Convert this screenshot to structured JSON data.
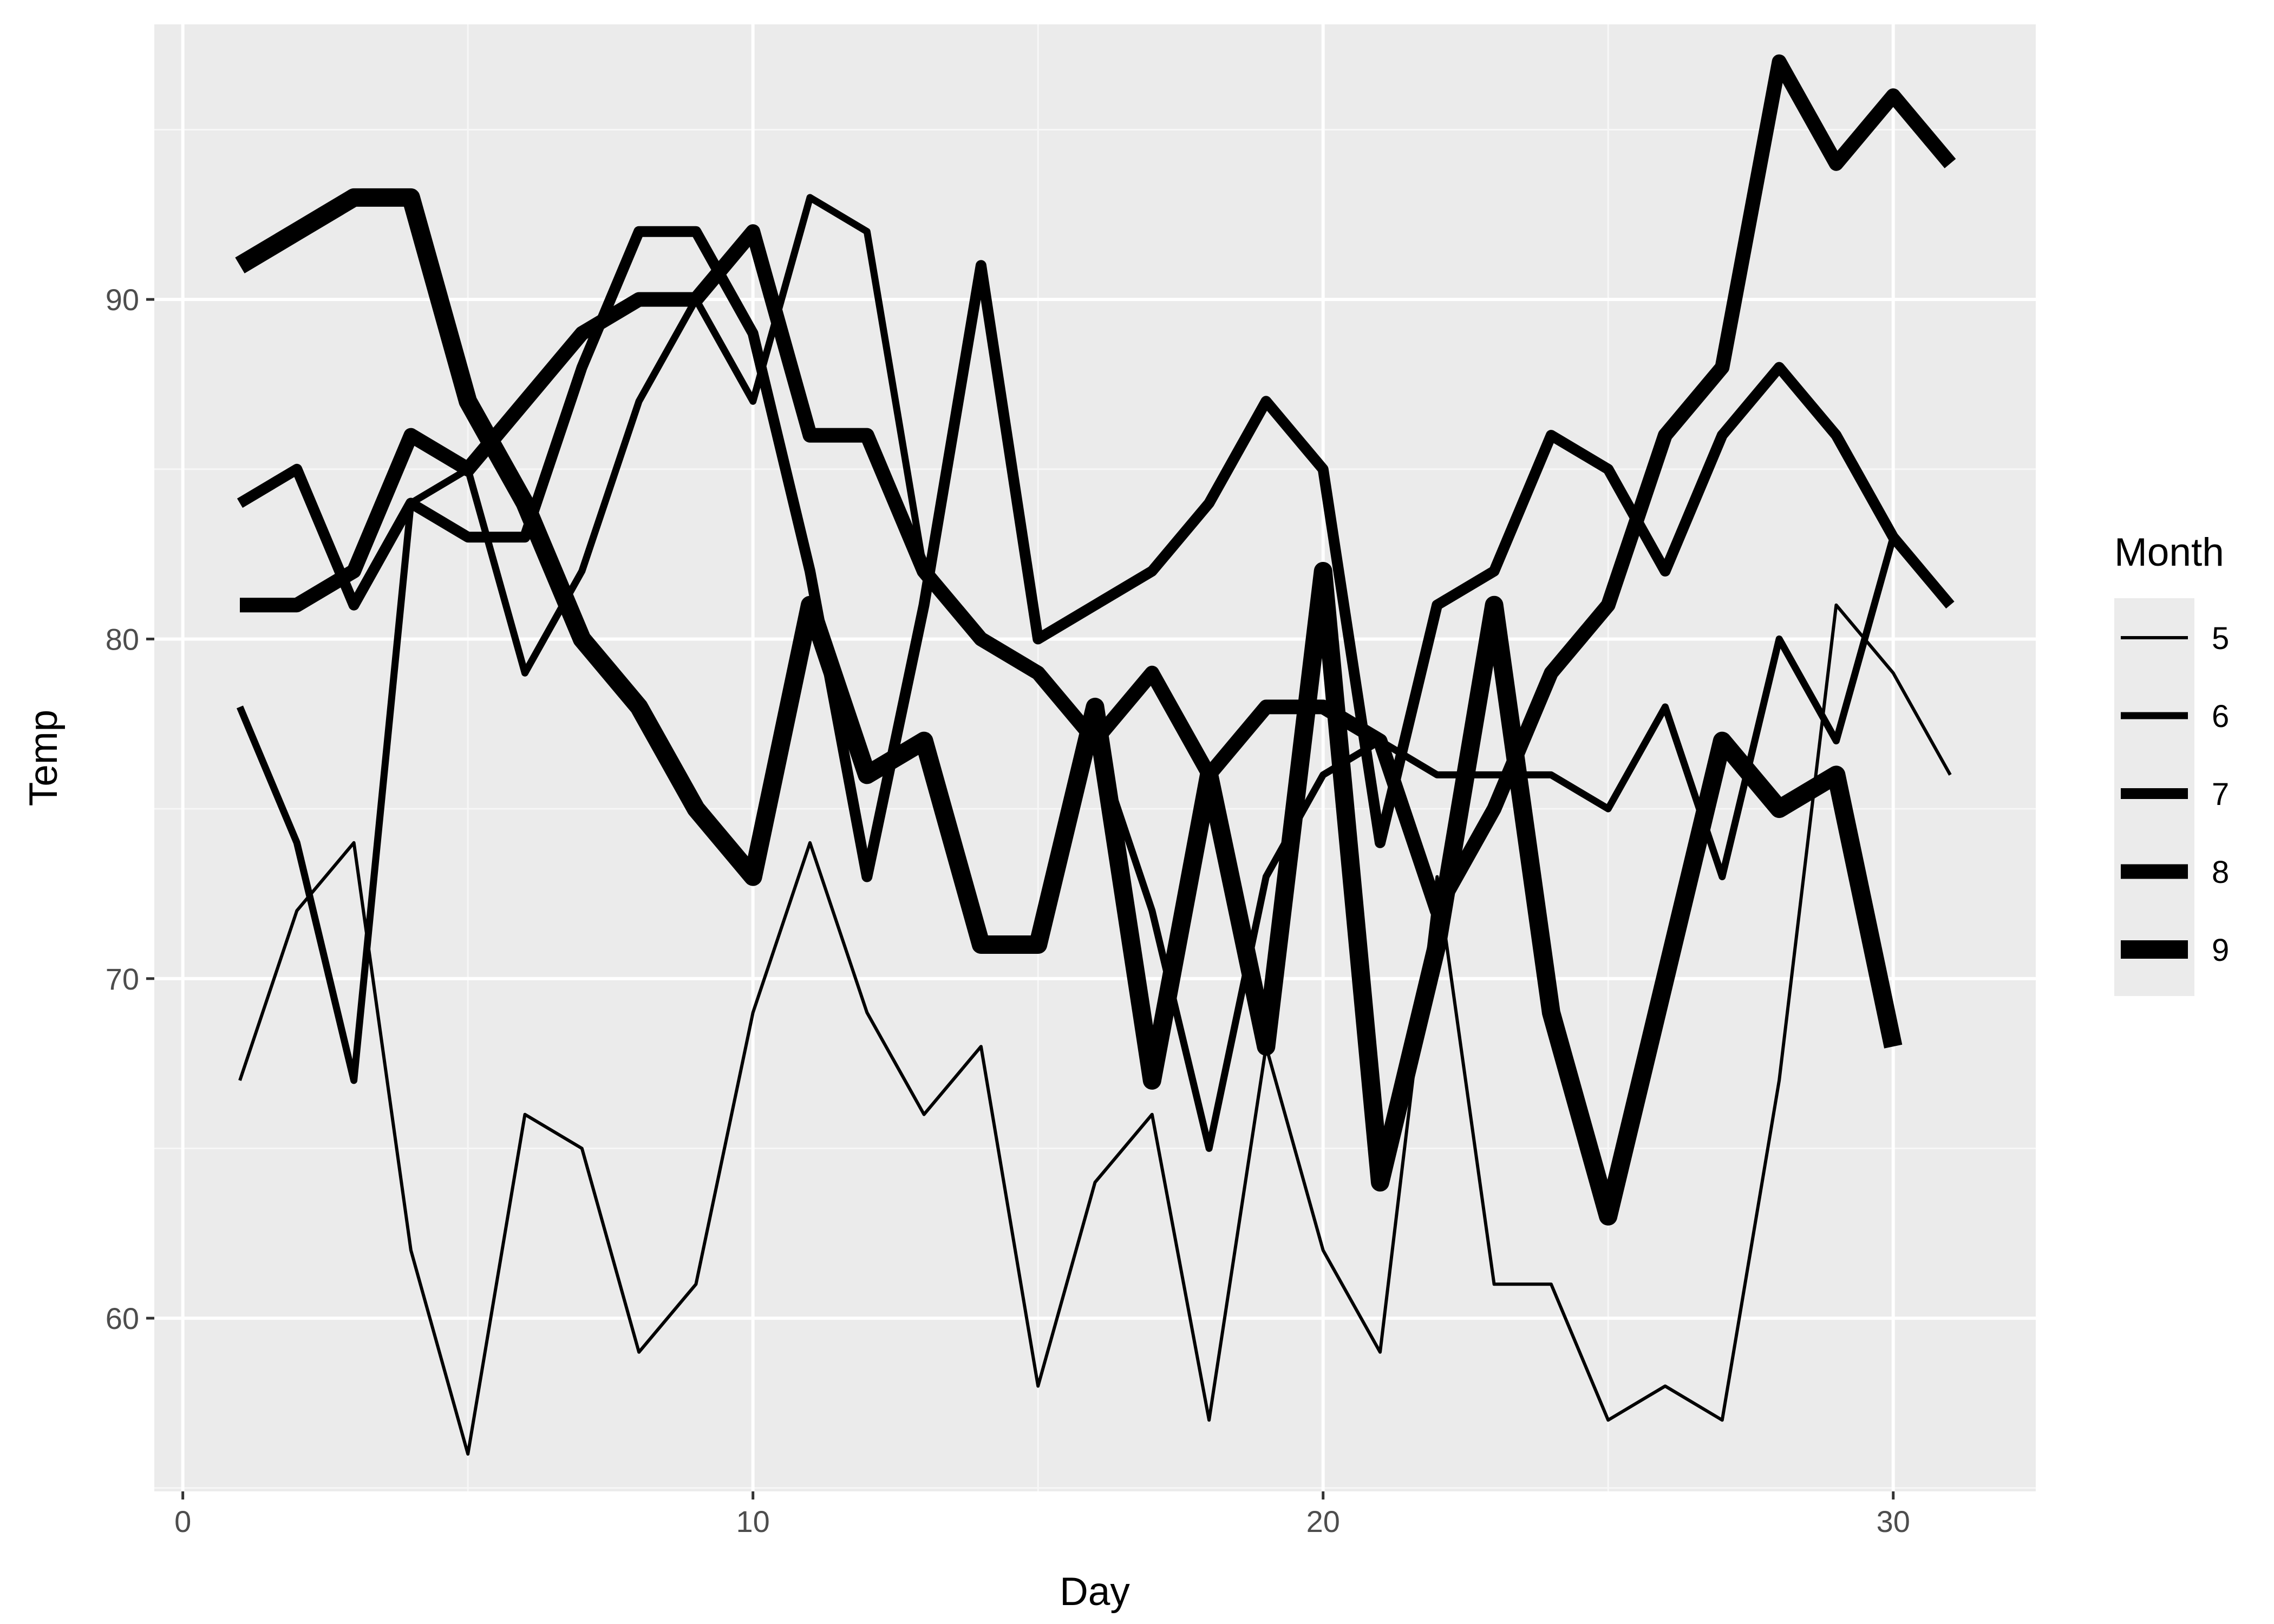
{
  "chart_data": {
    "type": "line",
    "xlabel": "Day",
    "ylabel": "Temp",
    "xlim": [
      -0.5,
      32.5
    ],
    "ylim": [
      54.9,
      98.1
    ],
    "x_ticks": [
      0,
      10,
      20,
      30
    ],
    "y_ticks": [
      60,
      70,
      80,
      90
    ],
    "grid": true,
    "legend": {
      "title": "Month",
      "position": "right",
      "mapping": "line width",
      "entries": [
        "5",
        "6",
        "7",
        "8",
        "9"
      ]
    },
    "colors": {
      "panel_background": "#ebebeb",
      "grid_major": "#ffffff",
      "grid_minor": "#f7f7f7",
      "line": "#000000"
    },
    "series": [
      {
        "name": "5",
        "x": [
          1,
          2,
          3,
          4,
          5,
          6,
          7,
          8,
          9,
          10,
          11,
          12,
          13,
          14,
          15,
          16,
          17,
          18,
          19,
          20,
          21,
          22,
          23,
          24,
          25,
          26,
          27,
          28,
          29,
          30,
          31
        ],
        "values": [
          67,
          72,
          74,
          62,
          56,
          66,
          65,
          59,
          61,
          69,
          74,
          69,
          66,
          68,
          58,
          64,
          66,
          57,
          68,
          62,
          59,
          73,
          61,
          61,
          57,
          58,
          57,
          67,
          81,
          79,
          76
        ]
      },
      {
        "name": "6",
        "x": [
          1,
          2,
          3,
          4,
          5,
          6,
          7,
          8,
          9,
          10,
          11,
          12,
          13,
          14,
          15,
          16,
          17,
          18,
          19,
          20,
          21,
          22,
          23,
          24,
          25,
          26,
          27,
          28,
          29,
          30
        ],
        "values": [
          78,
          74,
          67,
          84,
          85,
          79,
          82,
          87,
          90,
          87,
          93,
          92,
          82,
          80,
          79,
          77,
          72,
          65,
          73,
          76,
          77,
          76,
          76,
          76,
          75,
          78,
          73,
          80,
          77,
          83
        ]
      },
      {
        "name": "7",
        "x": [
          1,
          2,
          3,
          4,
          5,
          6,
          7,
          8,
          9,
          10,
          11,
          12,
          13,
          14,
          15,
          16,
          17,
          18,
          19,
          20,
          21,
          22,
          23,
          24,
          25,
          26,
          27,
          28,
          29,
          30,
          31
        ],
        "values": [
          84,
          85,
          81,
          84,
          83,
          83,
          88,
          92,
          92,
          89,
          82,
          73,
          81,
          91,
          80,
          81,
          82,
          84,
          87,
          85,
          74,
          81,
          82,
          86,
          85,
          82,
          86,
          88,
          86,
          83,
          81
        ]
      },
      {
        "name": "8",
        "x": [
          1,
          2,
          3,
          4,
          5,
          6,
          7,
          8,
          9,
          10,
          11,
          12,
          13,
          14,
          15,
          16,
          17,
          18,
          19,
          20,
          21,
          22,
          23,
          24,
          25,
          26,
          27,
          28,
          29,
          30,
          31
        ],
        "values": [
          81,
          81,
          82,
          86,
          85,
          87,
          89,
          90,
          90,
          92,
          86,
          86,
          82,
          80,
          79,
          77,
          79,
          76,
          78,
          78,
          77,
          72,
          75,
          79,
          81,
          86,
          88,
          97,
          94,
          96,
          94
        ]
      },
      {
        "name": "9",
        "x": [
          1,
          2,
          3,
          4,
          5,
          6,
          7,
          8,
          9,
          10,
          11,
          12,
          13,
          14,
          15,
          16,
          17,
          18,
          19,
          20,
          21,
          22,
          23,
          24,
          25,
          26,
          27,
          28,
          29,
          30
        ],
        "values": [
          91,
          92,
          93,
          93,
          87,
          84,
          80,
          78,
          75,
          73,
          81,
          76,
          77,
          71,
          71,
          78,
          67,
          76,
          68,
          82,
          64,
          71,
          81,
          69,
          63,
          70,
          77,
          75,
          76,
          68
        ]
      }
    ]
  }
}
